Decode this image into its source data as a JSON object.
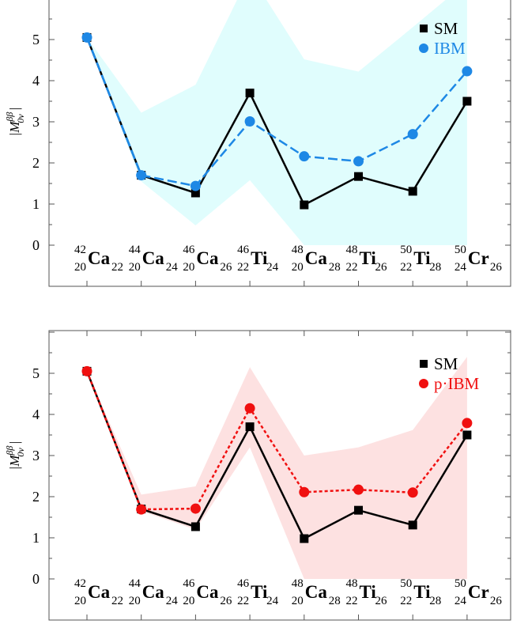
{
  "chart_data": [
    {
      "type": "line",
      "ylabel": "|M",
      "ylabel_sup": "ββ",
      "ylabel_sub": "0ν",
      "ylim": [
        0,
        6
      ],
      "yticks": [
        0,
        1,
        2,
        3,
        4,
        5
      ],
      "categories": [
        {
          "A": "42",
          "Z": "20",
          "el": "Ca",
          "N": "22"
        },
        {
          "A": "44",
          "Z": "20",
          "el": "Ca",
          "N": "24"
        },
        {
          "A": "46",
          "Z": "20",
          "el": "Ca",
          "N": "26"
        },
        {
          "A": "46",
          "Z": "22",
          "el": "Ti",
          "N": "24"
        },
        {
          "A": "48",
          "Z": "20",
          "el": "Ca",
          "N": "28"
        },
        {
          "A": "48",
          "Z": "22",
          "el": "Ti",
          "N": "26"
        },
        {
          "A": "50",
          "Z": "22",
          "el": "Ti",
          "N": "28"
        },
        {
          "A": "50",
          "Z": "24",
          "el": "Cr",
          "N": "26"
        }
      ],
      "series": [
        {
          "name": "SM",
          "values": [
            5.05,
            1.7,
            1.27,
            3.7,
            0.98,
            1.67,
            1.31,
            3.5
          ],
          "color": "#000000",
          "marker": "square",
          "dash": "solid"
        },
        {
          "name": "IBM",
          "values": [
            5.05,
            1.7,
            1.44,
            3.01,
            2.16,
            2.04,
            2.7,
            4.23
          ],
          "color": "#1e88e5",
          "marker": "circle",
          "dash": "dashed"
        }
      ],
      "band": {
        "color": "#e0fdfd",
        "upper": [
          5.05,
          3.22,
          3.9,
          6.6,
          4.52,
          4.22,
          5.3,
          6.4
        ],
        "lower": [
          5.05,
          1.55,
          0.48,
          1.58,
          0.0,
          0.0,
          0.0,
          0.0
        ]
      },
      "legend": "top-right"
    },
    {
      "type": "line",
      "ylabel": "|M",
      "ylabel_sup": "ββ",
      "ylabel_sub": "0ν",
      "ylim": [
        0,
        6
      ],
      "yticks": [
        0,
        1,
        2,
        3,
        4,
        5
      ],
      "categories": [
        {
          "A": "42",
          "Z": "20",
          "el": "Ca",
          "N": "22"
        },
        {
          "A": "44",
          "Z": "20",
          "el": "Ca",
          "N": "24"
        },
        {
          "A": "46",
          "Z": "20",
          "el": "Ca",
          "N": "26"
        },
        {
          "A": "46",
          "Z": "22",
          "el": "Ti",
          "N": "24"
        },
        {
          "A": "48",
          "Z": "20",
          "el": "Ca",
          "N": "28"
        },
        {
          "A": "48",
          "Z": "22",
          "el": "Ti",
          "N": "26"
        },
        {
          "A": "50",
          "Z": "22",
          "el": "Ti",
          "N": "28"
        },
        {
          "A": "50",
          "Z": "24",
          "el": "Cr",
          "N": "26"
        }
      ],
      "series": [
        {
          "name": "SM",
          "values": [
            5.05,
            1.7,
            1.27,
            3.7,
            0.98,
            1.67,
            1.31,
            3.5
          ],
          "color": "#000000",
          "marker": "square",
          "dash": "solid"
        },
        {
          "name": "p·IBM",
          "values": [
            5.05,
            1.69,
            1.71,
            4.15,
            2.11,
            2.17,
            2.1,
            3.79
          ],
          "color": "#f01010",
          "marker": "circle",
          "dash": "dotted"
        }
      ],
      "band": {
        "color": "#fde1e1",
        "upper": [
          5.05,
          2.05,
          2.25,
          5.15,
          3.0,
          3.2,
          3.62,
          5.4
        ],
        "lower": [
          5.05,
          1.65,
          1.2,
          3.2,
          0.0,
          0.0,
          0.0,
          0.0
        ]
      },
      "legend": "top-right"
    }
  ]
}
